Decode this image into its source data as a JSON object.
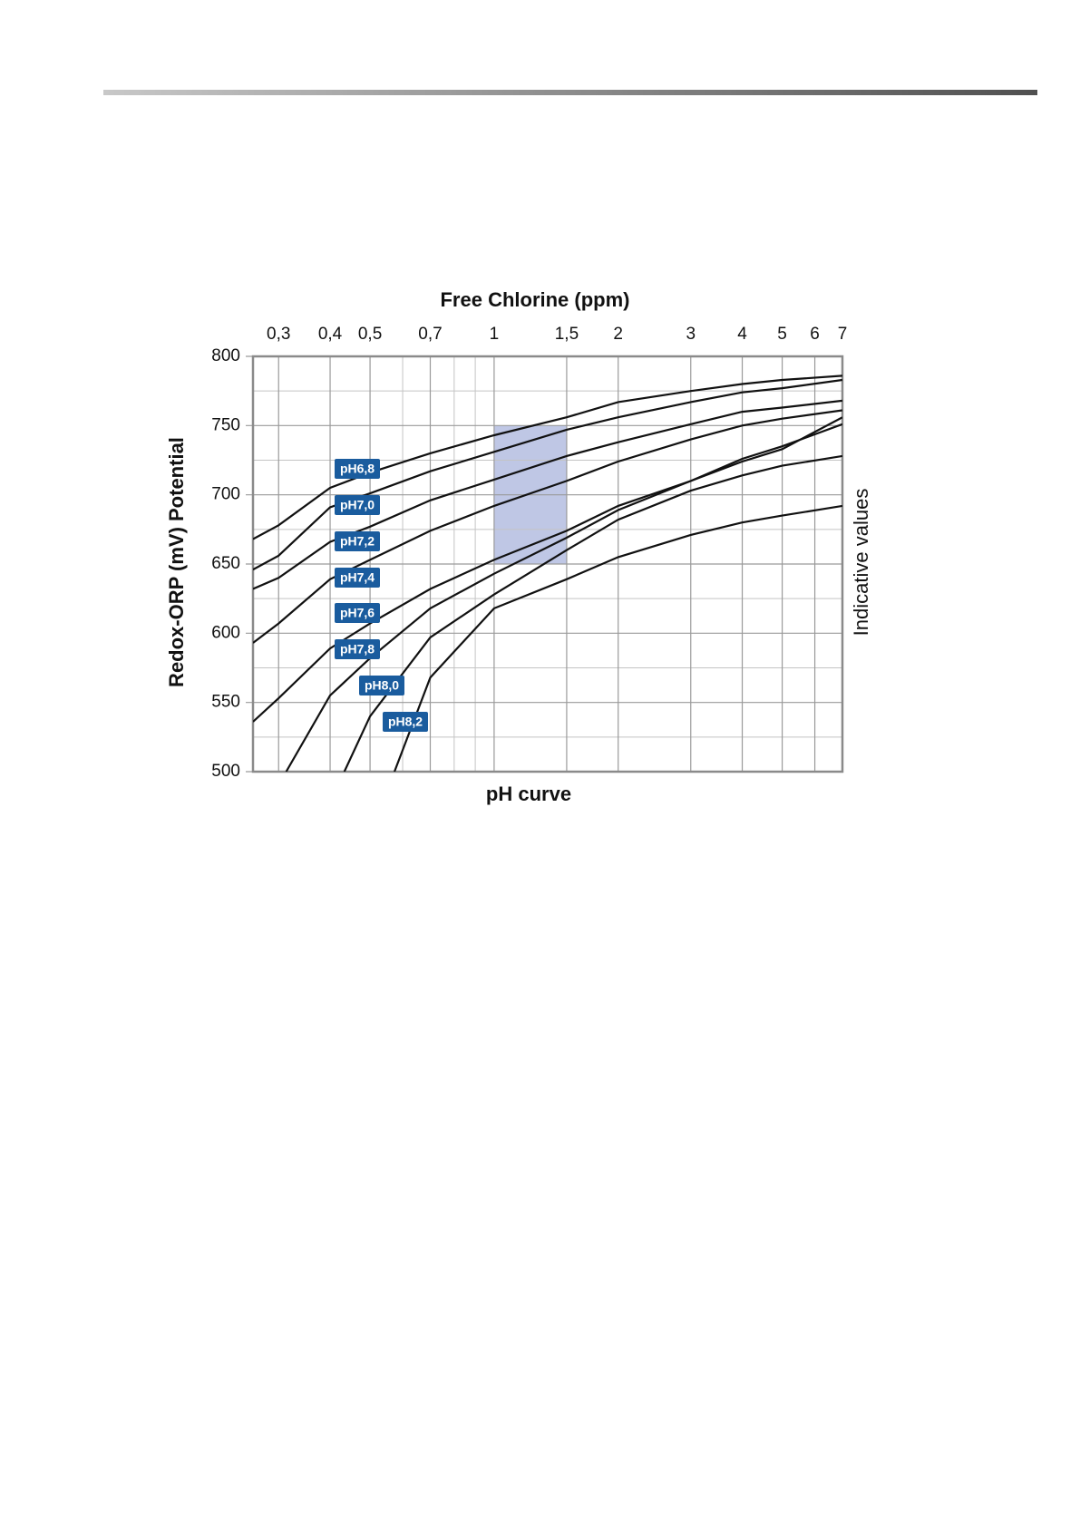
{
  "chart_data": {
    "type": "line",
    "title": "Free Chlorine (ppm)",
    "y_label": "Redox-ORP (mV) Potential",
    "x_label": "pH curve",
    "right_label": "Indicative values",
    "x_scale": "log",
    "xlim": [
      0.26,
      7
    ],
    "xticks": [
      {
        "value": 0.3,
        "label": "0,3"
      },
      {
        "value": 0.4,
        "label": "0,4"
      },
      {
        "value": 0.5,
        "label": "0,5"
      },
      {
        "value": 0.7,
        "label": "0,7"
      },
      1,
      {
        "value": 1.5,
        "label": "1,5"
      },
      2,
      3,
      4,
      5,
      6,
      7
    ],
    "x_minor_grid": [
      0.6,
      0.8,
      0.9
    ],
    "ylim": [
      500,
      800
    ],
    "yticks": [
      500,
      550,
      600,
      650,
      700,
      750,
      800
    ],
    "y_minor_grid": [
      525,
      575,
      625,
      675,
      725,
      775
    ],
    "grid": true,
    "highlight": {
      "x": [
        1,
        1.5
      ],
      "y": [
        650,
        750
      ],
      "color": "#aab4dc"
    },
    "series": [
      {
        "name": "pH6,8",
        "color": "#111111",
        "x": [
          0.26,
          0.3,
          0.4,
          0.5,
          0.7,
          1,
          1.5,
          2,
          3,
          4,
          5,
          7
        ],
        "values": [
          668,
          678,
          705,
          716,
          730,
          743,
          756,
          767,
          775,
          780,
          783,
          786
        ]
      },
      {
        "name": "pH7,0",
        "color": "#111111",
        "x": [
          0.26,
          0.3,
          0.4,
          0.5,
          0.7,
          1,
          1.5,
          2,
          3,
          4,
          5,
          7
        ],
        "values": [
          646,
          656,
          691,
          701,
          717,
          731,
          747,
          756,
          767,
          774,
          777,
          783
        ]
      },
      {
        "name": "pH7,2",
        "color": "#111111",
        "x": [
          0.26,
          0.3,
          0.4,
          0.5,
          0.7,
          1,
          1.5,
          2,
          3,
          4,
          5,
          7
        ],
        "values": [
          632,
          640,
          666,
          677,
          696,
          711,
          728,
          738,
          751,
          760,
          763,
          768
        ]
      },
      {
        "name": "pH7,4",
        "color": "#111111",
        "x": [
          0.26,
          0.3,
          0.4,
          0.5,
          0.7,
          1,
          1.5,
          2,
          3,
          4,
          5,
          7
        ],
        "values": [
          593,
          607,
          639,
          653,
          674,
          692,
          710,
          724,
          740,
          750,
          755,
          761
        ]
      },
      {
        "name": "pH7,6",
        "color": "#111111",
        "x": [
          0.26,
          0.3,
          0.4,
          0.5,
          0.7,
          1,
          1.5,
          2,
          3,
          4,
          5,
          7
        ],
        "values": [
          536,
          553,
          589,
          607,
          632,
          653,
          674,
          692,
          710,
          724,
          733,
          756
        ]
      },
      {
        "name": "pH7,8",
        "color": "#111111",
        "x": [
          0.313,
          0.4,
          0.5,
          0.7,
          1,
          1.5,
          2,
          3,
          4,
          5,
          7
        ],
        "values": [
          500,
          555,
          582,
          618,
          643,
          669,
          689,
          710,
          726,
          735,
          751
        ]
      },
      {
        "name": "pH8,0",
        "color": "#111111",
        "x": [
          0.433,
          0.5,
          0.7,
          1,
          1.5,
          2,
          3,
          4,
          5,
          7
        ],
        "values": [
          500,
          540,
          597,
          628,
          660,
          682,
          703,
          714,
          721,
          728
        ]
      },
      {
        "name": "pH8,2",
        "color": "#111111",
        "x": [
          0.573,
          0.7,
          1,
          1.5,
          2,
          3,
          4,
          5,
          7
        ],
        "values": [
          500,
          568,
          618,
          639,
          655,
          671,
          680,
          685,
          692
        ]
      }
    ],
    "label_color": "#1a5c9e"
  }
}
